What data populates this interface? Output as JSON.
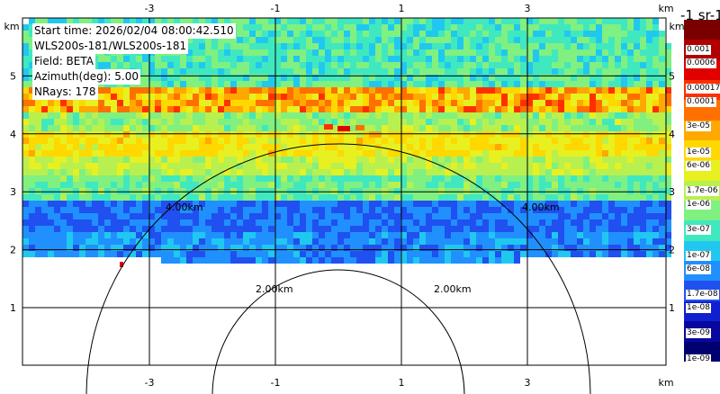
{
  "info": {
    "start_time": "Start time: 2026/02/04 08:00:42.510",
    "instrument": "WLS200s-181/WLS200s-181",
    "field": "Field: BETA",
    "azimuth": "Azimuth(deg): 5.00",
    "nrays": "NRays: 178"
  },
  "axes": {
    "unit_label": "km",
    "x_ticks": [
      "-3",
      "-1",
      "1",
      "3"
    ],
    "y_ticks": [
      "1",
      "2",
      "3",
      "4",
      "5"
    ]
  },
  "range_rings": [
    "2.00km",
    "2.00km",
    "4.00km",
    "4.00km"
  ],
  "colorbar": {
    "title": "-1 sr-1",
    "labels": [
      "0.001",
      "0.0006",
      "0.00017",
      "0.0001",
      "3e-05",
      "1e-05",
      "6e-06",
      "1.7e-06",
      "1e-06",
      "3e-07",
      "1e-07",
      "6e-08",
      "1.7e-08",
      "1e-08",
      "3e-09",
      "1e-09"
    ],
    "colors": [
      "#7a0000",
      "#b20000",
      "#e00000",
      "#ff3000",
      "#ff7000",
      "#ffa800",
      "#ffd800",
      "#e8f020",
      "#b8f050",
      "#80f080",
      "#40e8c0",
      "#20c8f0",
      "#2090ff",
      "#2050f0",
      "#1020d0",
      "#0808a0",
      "#000070"
    ]
  }
}
